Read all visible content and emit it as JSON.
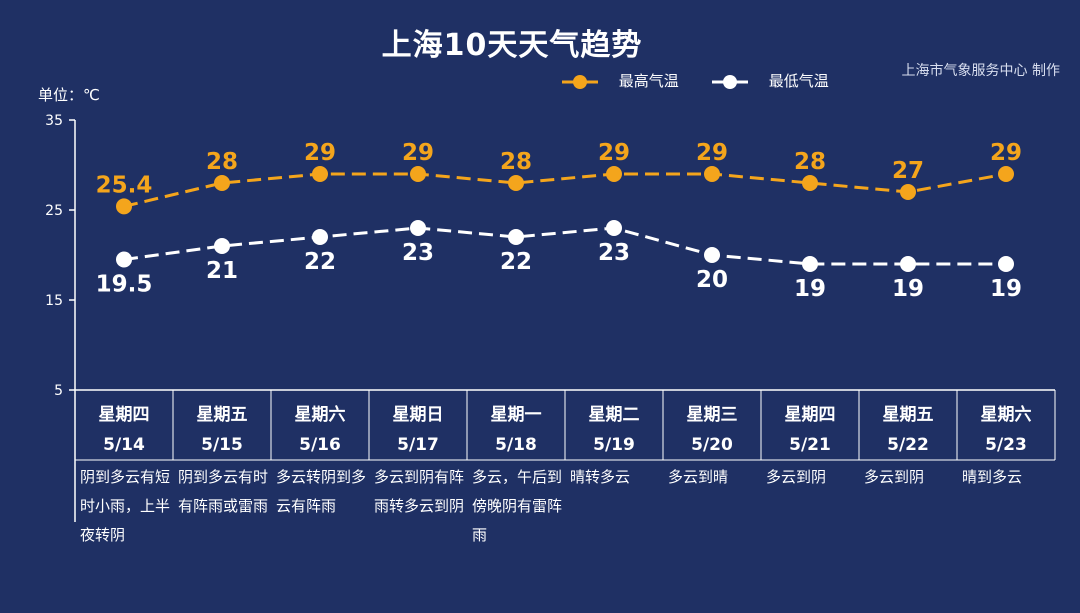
{
  "title": "上海10天天气趋势",
  "credit": "上海市气象服务中心 制作",
  "unit_label": "单位：℃",
  "legend": {
    "high": "最高气温",
    "low": "最低气温"
  },
  "colors": {
    "background": "#1f3064",
    "high": "#f4a51c",
    "low": "#ffffff",
    "axis": "#ffffff"
  },
  "chart_data": {
    "type": "line",
    "title": "上海10天天气趋势",
    "ylabel": "单位：℃",
    "ylim": [
      5,
      35
    ],
    "yticks": [
      5,
      15,
      25,
      35
    ],
    "grid": false,
    "legend_position": "top-right",
    "categories": [
      "5/14",
      "5/15",
      "5/16",
      "5/17",
      "5/18",
      "5/19",
      "5/20",
      "5/21",
      "5/22",
      "5/23"
    ],
    "series": [
      {
        "name": "最高气温",
        "values": [
          25.4,
          28,
          29,
          29,
          28,
          29,
          29,
          28,
          27,
          29
        ],
        "labels": [
          "25.4",
          "28",
          "29",
          "29",
          "28",
          "29",
          "29",
          "28",
          "27",
          "29"
        ]
      },
      {
        "name": "最低气温",
        "values": [
          19.5,
          21,
          22,
          23,
          22,
          23,
          20,
          19,
          19,
          19
        ],
        "labels": [
          "19.5",
          "21",
          "22",
          "23",
          "22",
          "23",
          "20",
          "19",
          "19",
          "19"
        ]
      }
    ]
  },
  "days": [
    {
      "weekday": "星期四",
      "date": "5/14",
      "desc": "阴到多云有短时小雨，上半夜转阴"
    },
    {
      "weekday": "星期五",
      "date": "5/15",
      "desc": "阴到多云有时有阵雨或雷雨"
    },
    {
      "weekday": "星期六",
      "date": "5/16",
      "desc": "多云转阴到多云有阵雨"
    },
    {
      "weekday": "星期日",
      "date": "5/17",
      "desc": "多云到阴有阵雨转多云到阴"
    },
    {
      "weekday": "星期一",
      "date": "5/18",
      "desc": "多云，午后到傍晚阴有雷阵雨"
    },
    {
      "weekday": "星期二",
      "date": "5/19",
      "desc": "晴转多云"
    },
    {
      "weekday": "星期三",
      "date": "5/20",
      "desc": "多云到晴"
    },
    {
      "weekday": "星期四",
      "date": "5/21",
      "desc": "多云到阴"
    },
    {
      "weekday": "星期五",
      "date": "5/22",
      "desc": "多云到阴"
    },
    {
      "weekday": "星期六",
      "date": "5/23",
      "desc": "晴到多云"
    }
  ]
}
